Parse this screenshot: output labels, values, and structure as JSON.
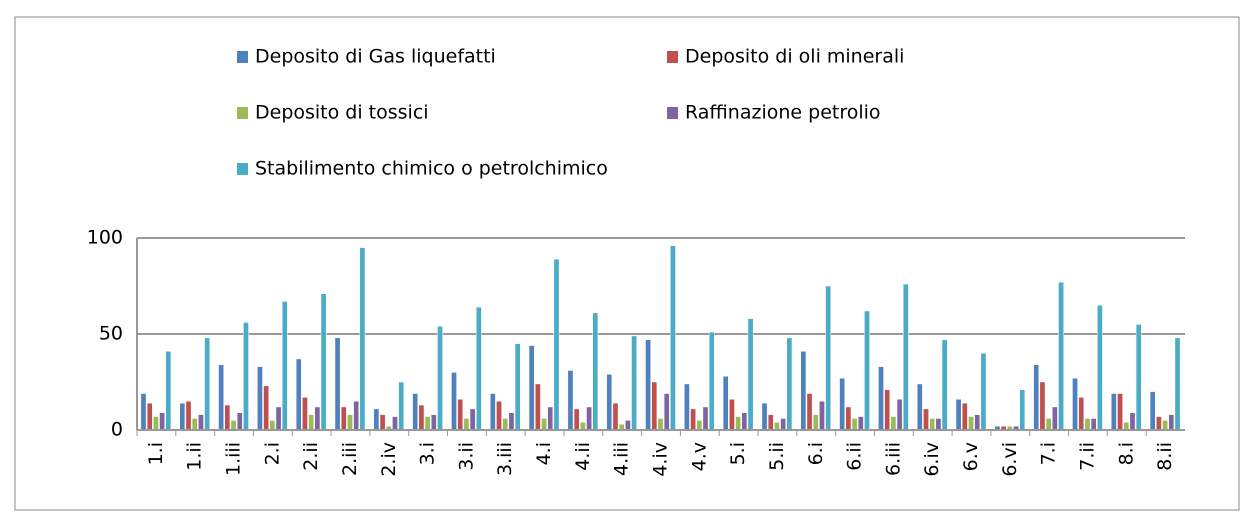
{
  "chart_data": {
    "type": "bar",
    "legend": "top",
    "grid": true,
    "categories": [
      "1.i",
      "1.ii",
      "1.iii",
      "2.i",
      "2.ii",
      "2.iii",
      "2.iv",
      "3.i",
      "3.ii",
      "3.iii",
      "4.i",
      "4.ii",
      "4.iii",
      "4.iv",
      "4.v",
      "5.i",
      "5.ii",
      "6.i",
      "6.ii",
      "6.iii",
      "6.iv",
      "6.v",
      "6.vi",
      "7.i",
      "7.ii",
      "8.i",
      "8.ii"
    ],
    "series": [
      {
        "name": "Deposito di Gas liquefatti",
        "color": "#4f81bd",
        "values": [
          19,
          14,
          34,
          33,
          37,
          48,
          11,
          19,
          30,
          19,
          44,
          31,
          29,
          47,
          24,
          28,
          14,
          41,
          27,
          33,
          24,
          16,
          2,
          34,
          27,
          19,
          20
        ]
      },
      {
        "name": "Deposito di oli minerali",
        "color": "#c0504d",
        "values": [
          14,
          15,
          13,
          23,
          17,
          12,
          8,
          13,
          16,
          15,
          24,
          11,
          14,
          25,
          11,
          16,
          8,
          19,
          12,
          21,
          11,
          14,
          2,
          25,
          17,
          19,
          7
        ]
      },
      {
        "name": "Deposito di tossici",
        "color": "#9bbb59",
        "values": [
          7,
          6,
          5,
          5,
          8,
          8,
          2,
          7,
          6,
          6,
          6,
          4,
          3,
          6,
          5,
          7,
          4,
          8,
          6,
          7,
          6,
          7,
          2,
          6,
          6,
          4,
          5
        ]
      },
      {
        "name": "Raffinazione petrolio",
        "color": "#8064a2",
        "values": [
          9,
          8,
          9,
          12,
          12,
          15,
          7,
          8,
          11,
          9,
          12,
          12,
          5,
          19,
          12,
          9,
          6,
          15,
          7,
          16,
          6,
          8,
          2,
          12,
          6,
          9,
          8
        ]
      },
      {
        "name": "Stabilimento chimico o petrolchimico",
        "color": "#4bacc6",
        "values": [
          41,
          48,
          56,
          67,
          71,
          95,
          25,
          54,
          64,
          45,
          89,
          61,
          49,
          96,
          51,
          58,
          48,
          75,
          62,
          76,
          47,
          40,
          21,
          77,
          65,
          55,
          48
        ]
      }
    ],
    "ylim": [
      0,
      100
    ],
    "yticks": [
      0,
      50,
      100
    ]
  }
}
